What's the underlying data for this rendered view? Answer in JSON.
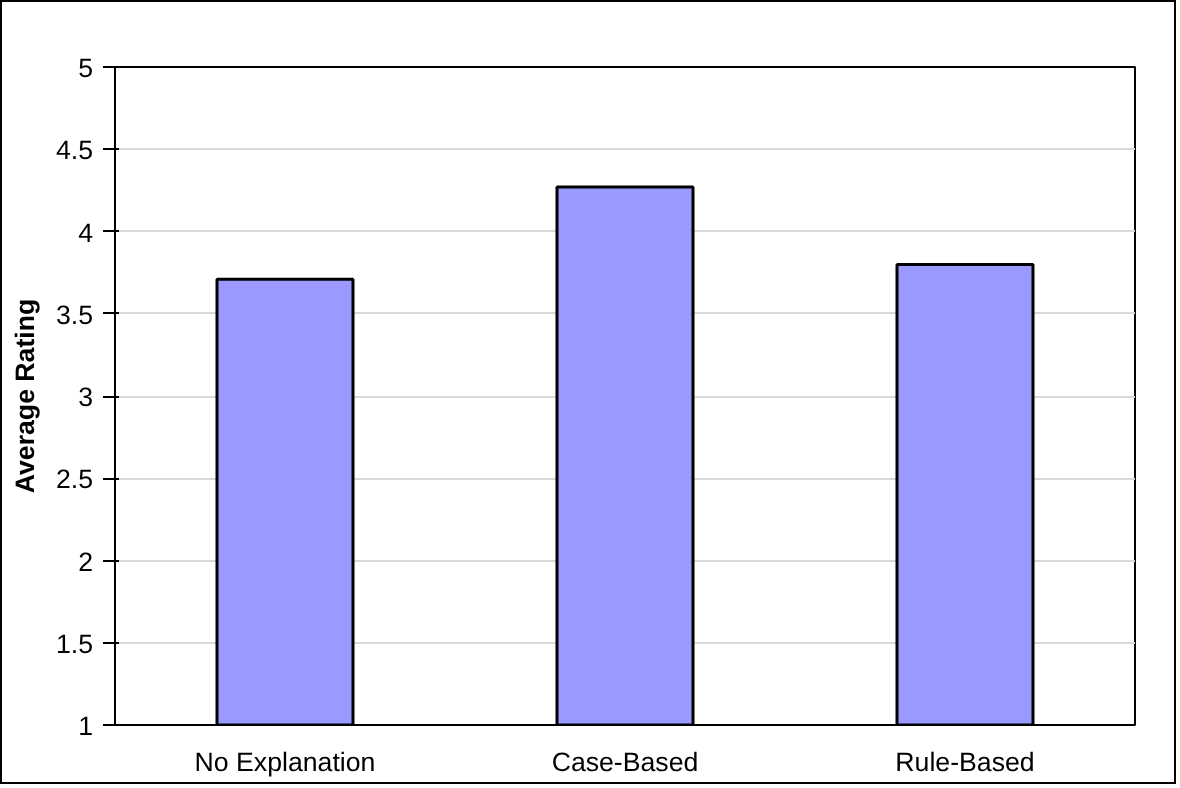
{
  "chart_data": {
    "type": "bar",
    "ylabel": "Average Rating",
    "categories": [
      "No Explanation",
      "Case-Based",
      "Rule-Based"
    ],
    "values": [
      3.71,
      4.27,
      3.8
    ],
    "color": "#9999ff",
    "ylim": [
      1,
      5
    ],
    "yticks": [
      1,
      1.5,
      2,
      2.5,
      3,
      3.5,
      4,
      4.5,
      5
    ],
    "grid": "y"
  }
}
